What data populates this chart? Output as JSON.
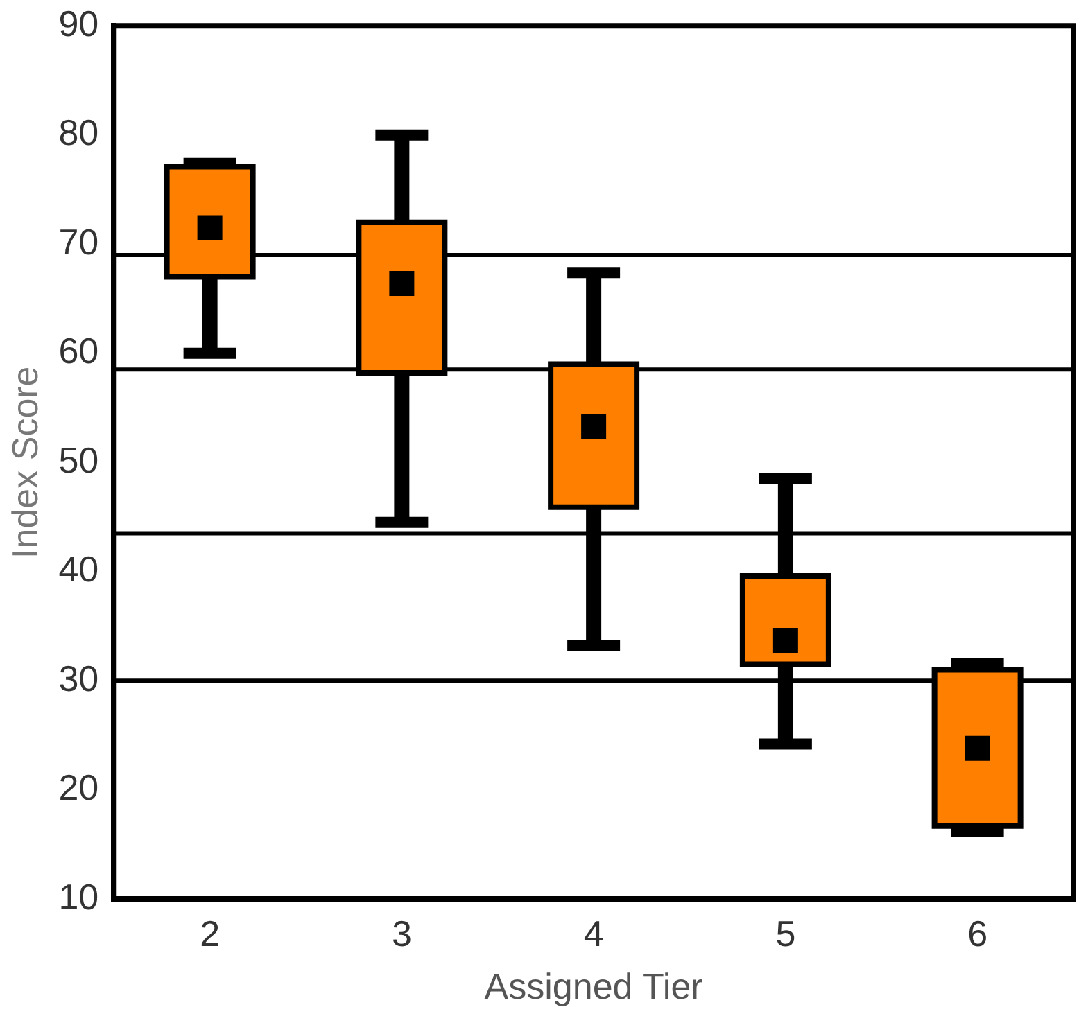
{
  "chart_data": {
    "type": "box",
    "xlabel": "Assigned Tier",
    "ylabel": "Index Score",
    "categories": [
      "2",
      "3",
      "4",
      "5",
      "6"
    ],
    "color": "#ff8000",
    "boxes": [
      {
        "low": 60,
        "q1": 67,
        "median": 71.5,
        "q3": 77.1,
        "high": 77.4
      },
      {
        "low": 44.5,
        "q1": 58.2,
        "median": 66.4,
        "q3": 72,
        "high": 80
      },
      {
        "low": 33.2,
        "q1": 45.9,
        "median": 53.3,
        "q3": 59,
        "high": 67.4
      },
      {
        "low": 24.2,
        "q1": 31.5,
        "median": 33.7,
        "q3": 39.6,
        "high": 48.5
      },
      {
        "low": 16.2,
        "q1": 16.7,
        "median": 23.8,
        "q3": 31,
        "high": 31.6
      }
    ],
    "ylim": [
      10,
      90
    ],
    "yticks": [
      10,
      20,
      30,
      40,
      50,
      60,
      70,
      80,
      90
    ],
    "grid": false,
    "legend": false,
    "marker": "square",
    "ref_lines": [
      {
        "axis": "y",
        "value": 69,
        "color": "#000000"
      },
      {
        "axis": "y",
        "value": 58.5,
        "color": "#000000"
      },
      {
        "axis": "y",
        "value": 43.5,
        "color": "#000000"
      },
      {
        "axis": "y",
        "value": 30,
        "color": "#000000"
      }
    ]
  }
}
